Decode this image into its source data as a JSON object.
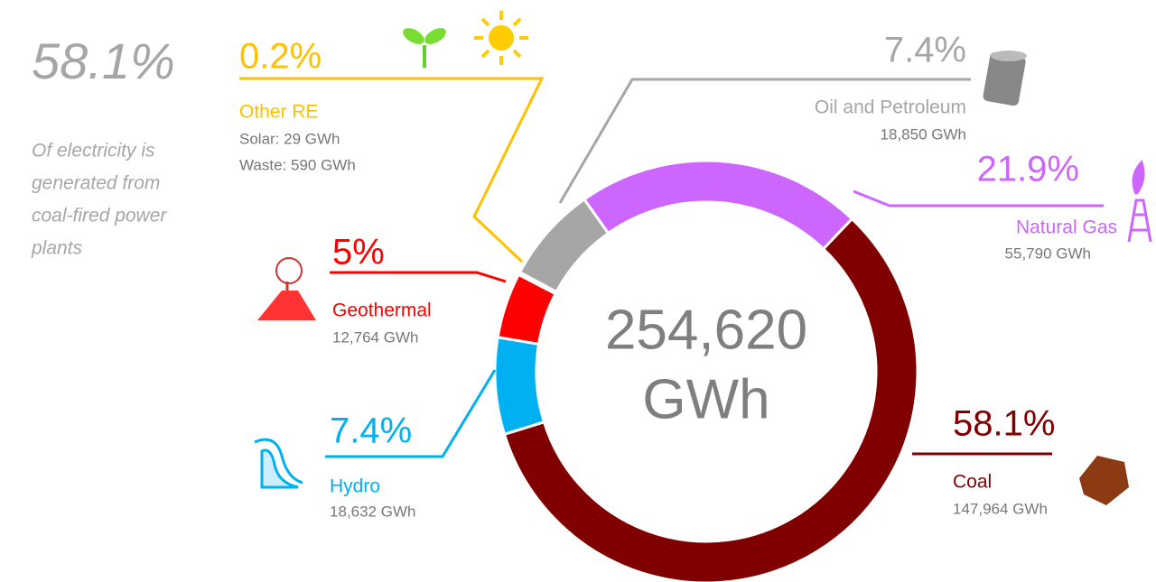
{
  "chart_data": {
    "type": "donut",
    "categories": [
      "Coal",
      "Hydro",
      "Geothermal",
      "Other RE",
      "Oil and Petroleum",
      "Natural Gas"
    ],
    "values": [
      58.1,
      7.4,
      5,
      0.2,
      7.4,
      21.9
    ],
    "value_labels": [
      "58.1%",
      "7.4%",
      "5%",
      "0.2%",
      "7.4%",
      "21.9%"
    ],
    "colors": [
      "#800000",
      "#00b0f0",
      "#ff0000",
      "#ffc000",
      "#a6a6a6",
      "#cc66ff"
    ],
    "details": [
      [
        "147,964 GWh"
      ],
      [
        "18,632 GWh"
      ],
      [
        "12,764 GWh"
      ],
      [
        "Solar: 29 GWh",
        "Waste: 590 GWh"
      ],
      [
        "18,850 GWh"
      ],
      [
        "55,790 GWh"
      ]
    ],
    "center_label": [
      "254,620",
      "GWh"
    ],
    "highlight": "58.1%",
    "note": [
      "Of electricity is",
      "generated from",
      "coal-fired power",
      "plants"
    ]
  }
}
